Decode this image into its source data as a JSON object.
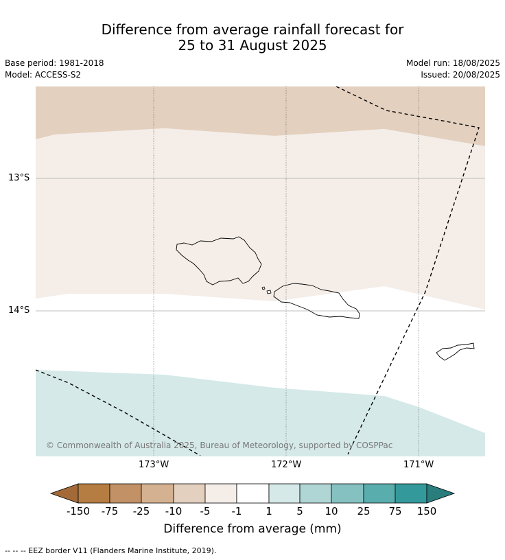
{
  "title_line1": "Difference from average rainfall forecast for",
  "title_line2": "25 to 31 August 2025",
  "meta": {
    "base_period": "Base period: 1981-2018",
    "model": "Model: ACCESS-S2",
    "model_run": "Model run: 18/08/2025",
    "issued": "Issued: 20/08/2025"
  },
  "map": {
    "lat_labels": [
      "13°S",
      "14°S"
    ],
    "lon_labels": [
      "173°W",
      "172°W",
      "171°W"
    ],
    "copyright": "© Commonwealth of Australia 2025, Bureau of Meteorology, supported by COSPPac",
    "colors": {
      "neg_10_to_5": "#e3d0bf",
      "neg_5_to_1": "#f4ede8",
      "neutral": "#ffffff",
      "pos_1_to_5": "#d5e9e8"
    }
  },
  "legend": {
    "title": "Difference from average (mm)",
    "tick_labels": [
      "-150",
      "-75",
      "-25",
      "-10",
      "-5",
      "-1",
      "1",
      "5",
      "10",
      "25",
      "75",
      "150"
    ],
    "colors": [
      "#a36a37",
      "#b67d43",
      "#c39166",
      "#d4b191",
      "#e3d0bf",
      "#f4ede8",
      "#ffffff",
      "#d5e9e8",
      "#b0d5d5",
      "#86c1c1",
      "#5aadad",
      "#34999a",
      "#2a7d7d"
    ]
  },
  "footer": "--  --  -- EEZ border V11 (Flanders Marine Institute, 2019)."
}
